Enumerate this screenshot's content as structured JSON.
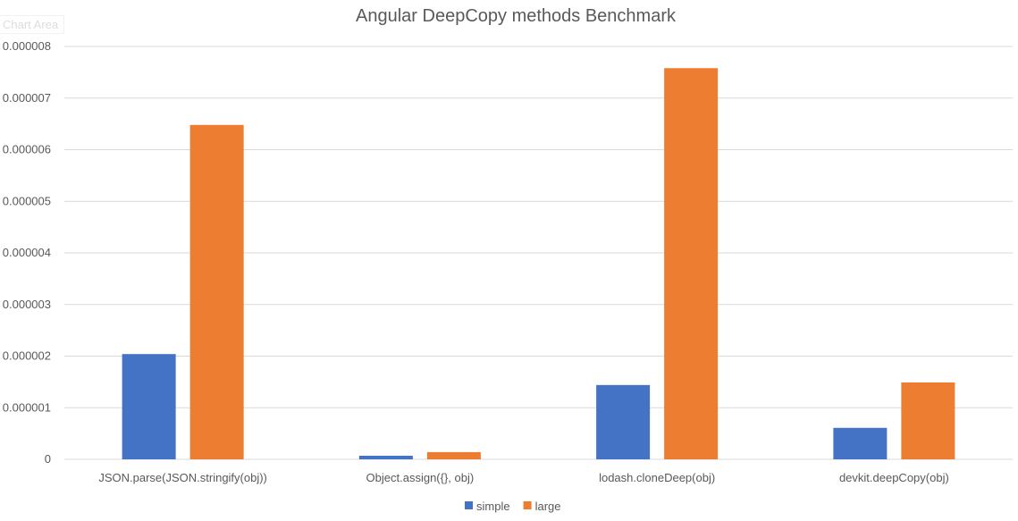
{
  "chart_area_label": "Chart Area",
  "chart_data": {
    "type": "bar",
    "title": "Angular DeepCopy methods Benchmark",
    "categories": [
      "JSON.parse(JSON.stringify(obj))",
      "Object.assign({}, obj)",
      "lodash.cloneDeep(obj)",
      "devkit.deepCopy(obj)"
    ],
    "series": [
      {
        "name": "simple",
        "color": "#4472C4",
        "values": [
          2.04e-06,
          7e-08,
          1.44e-06,
          6.1e-07
        ]
      },
      {
        "name": "large",
        "color": "#ED7D31",
        "values": [
          6.48e-06,
          1.4e-07,
          7.58e-06,
          1.49e-06
        ]
      }
    ],
    "ylim": [
      0,
      8e-06
    ],
    "yticks": [
      "0",
      "0.000001",
      "0.000002",
      "0.000003",
      "0.000004",
      "0.000005",
      "0.000006",
      "0.000007",
      "0.000008"
    ],
    "grid": true,
    "legend": "bottom"
  }
}
